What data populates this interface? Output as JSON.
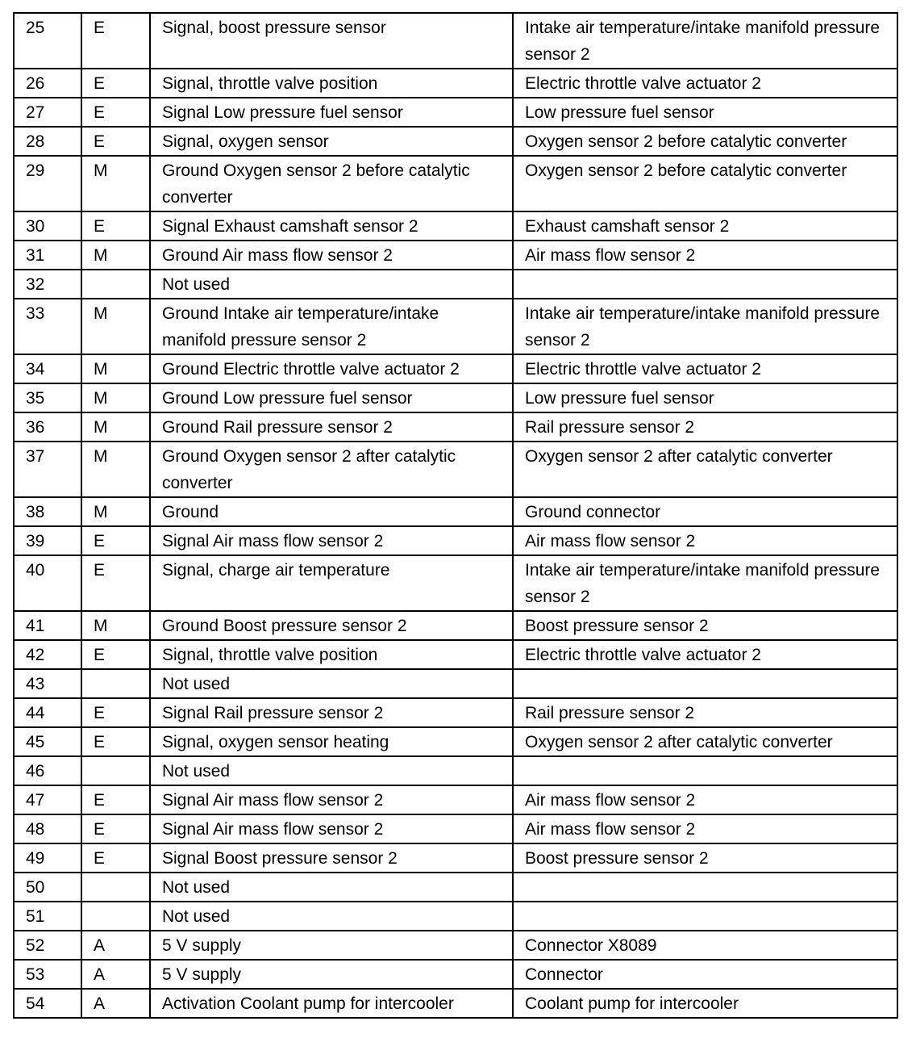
{
  "rows": [
    [
      "25",
      "E",
      "Signal, boost pressure sensor",
      "Intake air temperature/intake manifold pressure sensor 2"
    ],
    [
      "26",
      "E",
      "Signal, throttle valve position",
      "Electric throttle valve actuator 2"
    ],
    [
      "27",
      "E",
      "Signal Low pressure fuel sensor",
      "Low pressure fuel sensor"
    ],
    [
      "28",
      "E",
      "Signal, oxygen sensor",
      "Oxygen sensor 2 before catalytic converter"
    ],
    [
      "29",
      "M",
      "Ground Oxygen sensor 2 before catalytic converter",
      "Oxygen sensor 2 before catalytic converter"
    ],
    [
      "30",
      "E",
      "Signal Exhaust camshaft sensor 2",
      "Exhaust camshaft sensor 2"
    ],
    [
      "31",
      "M",
      "Ground Air mass flow sensor 2",
      "Air mass flow sensor 2"
    ],
    [
      "32",
      "",
      "Not used",
      ""
    ],
    [
      "33",
      "M",
      "Ground Intake air temperature/intake manifold pressure sensor 2",
      "Intake air temperature/intake manifold pressure sensor 2"
    ],
    [
      "34",
      "M",
      "Ground Electric throttle valve actuator 2",
      "Electric throttle valve actuator 2"
    ],
    [
      "35",
      "M",
      "Ground Low pressure fuel sensor",
      "Low pressure fuel sensor"
    ],
    [
      "36",
      "M",
      "Ground Rail pressure sensor 2",
      "Rail pressure sensor 2"
    ],
    [
      "37",
      "M",
      "Ground Oxygen sensor 2 after catalytic converter",
      "Oxygen sensor 2 after catalytic converter"
    ],
    [
      "38",
      "M",
      "Ground",
      "Ground connector"
    ],
    [
      "39",
      "E",
      "Signal Air mass flow sensor 2",
      "Air mass flow sensor 2"
    ],
    [
      "40",
      "E",
      "Signal, charge air temperature",
      "Intake air temperature/intake manifold pressure sensor 2"
    ],
    [
      "41",
      "M",
      "Ground Boost pressure sensor 2",
      "Boost pressure sensor 2"
    ],
    [
      "42",
      "E",
      "Signal, throttle valve position",
      "Electric throttle valve actuator 2"
    ],
    [
      "43",
      "",
      "Not used",
      ""
    ],
    [
      "44",
      "E",
      "Signal Rail pressure sensor 2",
      "Rail pressure sensor 2"
    ],
    [
      "45",
      "E",
      "Signal, oxygen sensor heating",
      "Oxygen sensor 2 after catalytic converter"
    ],
    [
      "46",
      "",
      "Not used",
      ""
    ],
    [
      "47",
      "E",
      "Signal Air mass flow sensor 2",
      "Air mass flow sensor 2"
    ],
    [
      "48",
      "E",
      "Signal Air mass flow sensor 2",
      "Air mass flow sensor 2"
    ],
    [
      "49",
      "E",
      "Signal Boost pressure sensor 2",
      "Boost pressure sensor 2"
    ],
    [
      "50",
      "",
      "Not used",
      ""
    ],
    [
      "51",
      "",
      "Not used",
      ""
    ],
    [
      "52",
      "A",
      "5 V supply",
      "Connector X8089"
    ],
    [
      "53",
      "A",
      "5 V supply",
      "Connector"
    ],
    [
      "54",
      "A",
      "Activation Coolant pump for intercooler",
      "Coolant pump for intercooler"
    ]
  ]
}
